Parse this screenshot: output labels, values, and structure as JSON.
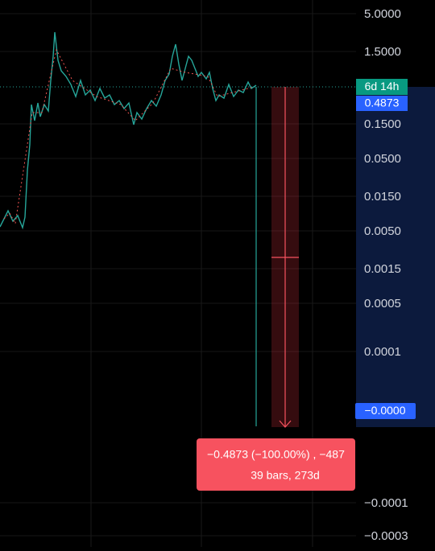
{
  "badges": {
    "countdown": "6d 14h",
    "last_price": "0.4873",
    "cursor_price": "−0.0000"
  },
  "price_axis": {
    "labels": [
      "5.0000",
      "1.5000",
      "0.1500",
      "0.0500",
      "0.0150",
      "0.0050",
      "0.0015",
      "0.0005",
      "0.0001",
      "−0.0001",
      "−0.0003"
    ]
  },
  "measure_tooltip": {
    "line1": "−0.4873 (−100.00%) , −487",
    "line2": "39 bars, 273d"
  }
}
